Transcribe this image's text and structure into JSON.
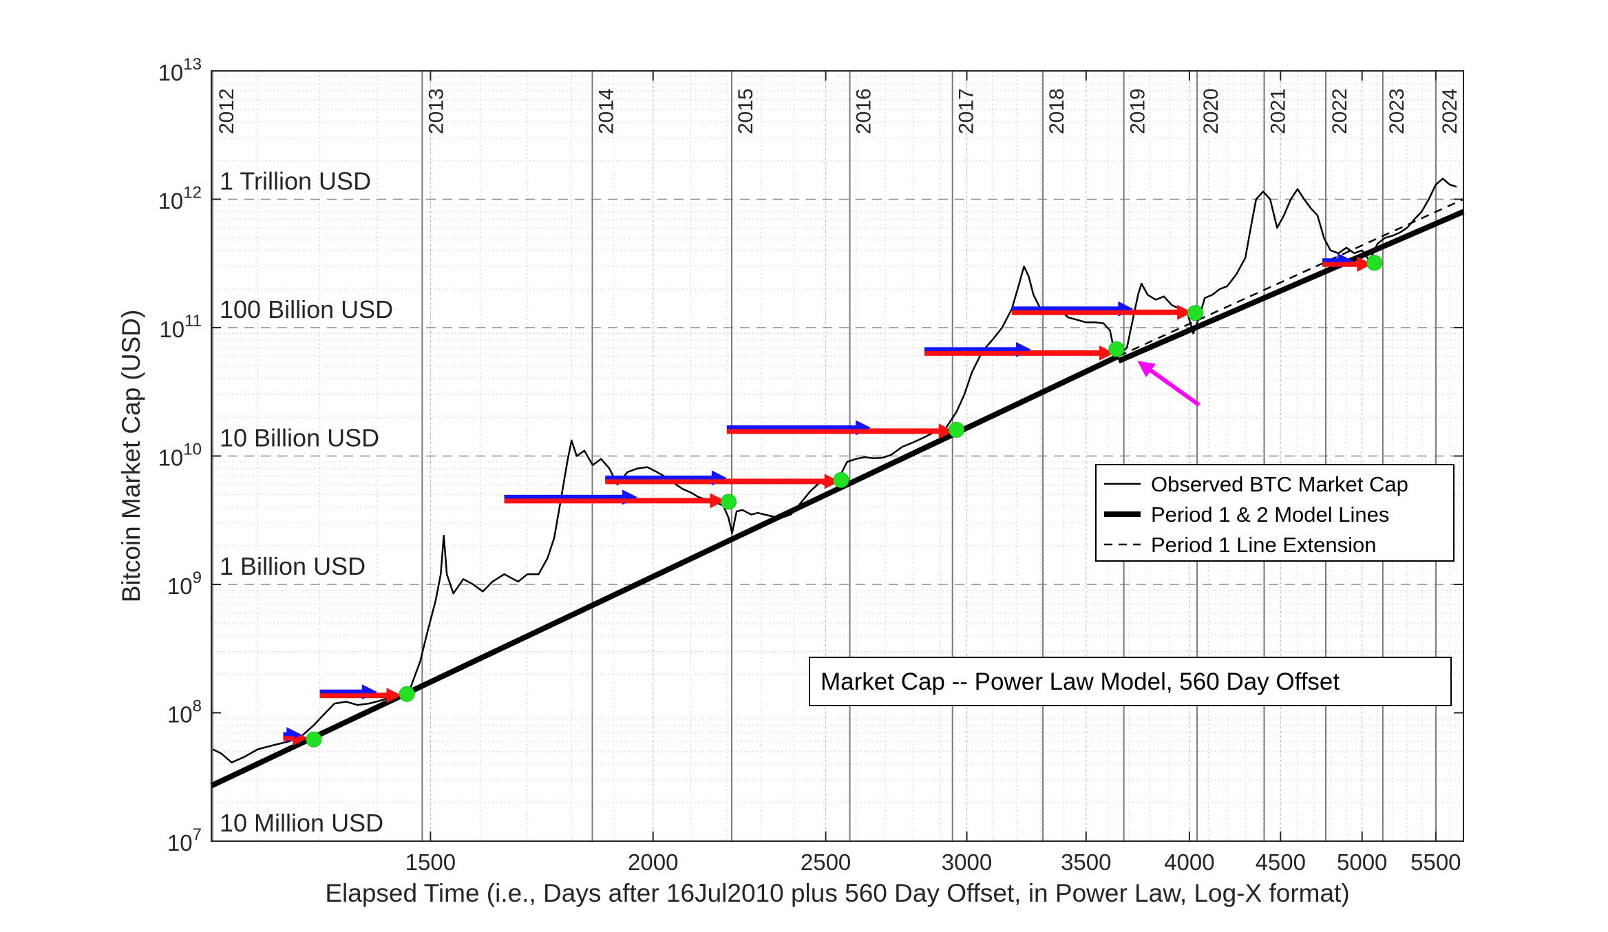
{
  "chart_data": {
    "type": "line",
    "title": "",
    "xlabel": "Elapsed Time (i.e., Days after 16Jul2010 plus 560 Day Offset, in Power Law, Log-X format)",
    "ylabel": "Bitcoin Market Cap (USD)",
    "x_scale": "log",
    "y_scale": "log",
    "xlim": [
      1130,
      5700
    ],
    "ylim": [
      10000000,
      10000000000000
    ],
    "grid": true,
    "x_ticks": [
      {
        "value": 1500,
        "label": "1500"
      },
      {
        "value": 2000,
        "label": "2000"
      },
      {
        "value": 2500,
        "label": "2500"
      },
      {
        "value": 3000,
        "label": "3000"
      },
      {
        "value": 3500,
        "label": "3500"
      },
      {
        "value": 4000,
        "label": "4000"
      },
      {
        "value": 4500,
        "label": "4500"
      },
      {
        "value": 5000,
        "label": "5000"
      },
      {
        "value": 5500,
        "label": "5500"
      }
    ],
    "y_ticks": [
      {
        "value": 10000000,
        "base": "10",
        "exp": "7"
      },
      {
        "value": 100000000,
        "base": "10",
        "exp": "8"
      },
      {
        "value": 1000000000,
        "base": "10",
        "exp": "9"
      },
      {
        "value": 10000000000,
        "base": "10",
        "exp": "10"
      },
      {
        "value": 100000000000,
        "base": "10",
        "exp": "11"
      },
      {
        "value": 1000000000000,
        "base": "10",
        "exp": "12"
      },
      {
        "value": 10000000000000,
        "base": "10",
        "exp": "13"
      }
    ],
    "reference_lines": [
      {
        "value": 10000000,
        "label": "10 Million USD"
      },
      {
        "value": 1000000000,
        "label": "1 Billion USD"
      },
      {
        "value": 10000000000,
        "label": "10 Billion USD"
      },
      {
        "value": 100000000000,
        "label": "100 Billion USD"
      },
      {
        "value": 1000000000000,
        "label": "1 Trillion USD"
      }
    ],
    "year_markers": [
      {
        "day": 1132,
        "label": "2012"
      },
      {
        "day": 1484,
        "label": "2013"
      },
      {
        "day": 1849,
        "label": "2014"
      },
      {
        "day": 2214,
        "label": "2015"
      },
      {
        "day": 2579,
        "label": "2016"
      },
      {
        "day": 2945,
        "label": "2017"
      },
      {
        "day": 3310,
        "label": "2018"
      },
      {
        "day": 3675,
        "label": "2019"
      },
      {
        "day": 4040,
        "label": "2020"
      },
      {
        "day": 4406,
        "label": "2021"
      },
      {
        "day": 4771,
        "label": "2022"
      },
      {
        "day": 5136,
        "label": "2023"
      },
      {
        "day": 5501,
        "label": "2024"
      }
    ],
    "series": [
      {
        "name": "Observed BTC Market Cap",
        "style": "thin-solid",
        "color": "#000000",
        "points": [
          [
            1132,
            52000000
          ],
          [
            1145,
            48000000
          ],
          [
            1160,
            41000000
          ],
          [
            1178,
            45000000
          ],
          [
            1200,
            52000000
          ],
          [
            1225,
            56000000
          ],
          [
            1250,
            60000000
          ],
          [
            1270,
            66000000
          ],
          [
            1290,
            80000000
          ],
          [
            1305,
            95000000
          ],
          [
            1325,
            118000000
          ],
          [
            1345,
            122000000
          ],
          [
            1365,
            115000000
          ],
          [
            1385,
            118000000
          ],
          [
            1405,
            124000000
          ],
          [
            1425,
            132000000
          ],
          [
            1445,
            140000000
          ],
          [
            1460,
            150000000
          ],
          [
            1480,
            250000000
          ],
          [
            1495,
            440000000
          ],
          [
            1510,
            750000000
          ],
          [
            1520,
            1200000000
          ],
          [
            1526,
            2400000000
          ],
          [
            1532,
            1200000000
          ],
          [
            1545,
            850000000
          ],
          [
            1565,
            1100000000
          ],
          [
            1585,
            1000000000
          ],
          [
            1605,
            880000000
          ],
          [
            1625,
            1050000000
          ],
          [
            1650,
            1200000000
          ],
          [
            1680,
            1050000000
          ],
          [
            1700,
            1200000000
          ],
          [
            1725,
            1200000000
          ],
          [
            1745,
            1600000000
          ],
          [
            1760,
            2300000000
          ],
          [
            1775,
            4500000000
          ],
          [
            1790,
            9000000000
          ],
          [
            1800,
            13200000000
          ],
          [
            1812,
            10000000000
          ],
          [
            1830,
            11000000000
          ],
          [
            1850,
            8500000000
          ],
          [
            1870,
            9500000000
          ],
          [
            1890,
            8000000000
          ],
          [
            1910,
            6000000000
          ],
          [
            1935,
            7500000000
          ],
          [
            1960,
            8000000000
          ],
          [
            1985,
            8200000000
          ],
          [
            2010,
            7500000000
          ],
          [
            2035,
            6800000000
          ],
          [
            2060,
            6000000000
          ],
          [
            2080,
            5500000000
          ],
          [
            2100,
            5200000000
          ],
          [
            2120,
            4800000000
          ],
          [
            2140,
            4600000000
          ],
          [
            2165,
            4400000000
          ],
          [
            2190,
            4100000000
          ],
          [
            2205,
            3300000000
          ],
          [
            2215,
            2500000000
          ],
          [
            2228,
            3700000000
          ],
          [
            2245,
            3800000000
          ],
          [
            2270,
            3500000000
          ],
          [
            2290,
            3600000000
          ],
          [
            2310,
            3500000000
          ],
          [
            2330,
            3400000000
          ],
          [
            2360,
            3300000000
          ],
          [
            2390,
            3500000000
          ],
          [
            2420,
            4300000000
          ],
          [
            2450,
            5300000000
          ],
          [
            2480,
            6200000000
          ],
          [
            2510,
            5900000000
          ],
          [
            2540,
            6500000000
          ],
          [
            2570,
            9000000000
          ],
          [
            2600,
            9500000000
          ],
          [
            2630,
            9800000000
          ],
          [
            2660,
            9600000000
          ],
          [
            2690,
            9700000000
          ],
          [
            2720,
            10200000000
          ],
          [
            2760,
            11800000000
          ],
          [
            2800,
            12800000000
          ],
          [
            2840,
            14000000000
          ],
          [
            2880,
            15500000000
          ],
          [
            2920,
            16500000000
          ],
          [
            2960,
            22000000000
          ],
          [
            2990,
            30000000000
          ],
          [
            3020,
            45000000000
          ],
          [
            3060,
            65000000000
          ],
          [
            3100,
            80000000000
          ],
          [
            3140,
            100000000000
          ],
          [
            3180,
            140000000000
          ],
          [
            3210,
            220000000000
          ],
          [
            3230,
            300000000000
          ],
          [
            3250,
            250000000000
          ],
          [
            3270,
            180000000000
          ],
          [
            3300,
            140000000000
          ],
          [
            3340,
            130000000000
          ],
          [
            3380,
            140000000000
          ],
          [
            3420,
            120000000000
          ],
          [
            3460,
            115000000000
          ],
          [
            3500,
            110000000000
          ],
          [
            3540,
            110000000000
          ],
          [
            3580,
            108000000000
          ],
          [
            3610,
            95000000000
          ],
          [
            3630,
            65000000000
          ],
          [
            3660,
            63000000000
          ],
          [
            3690,
            70000000000
          ],
          [
            3720,
            120000000000
          ],
          [
            3745,
            185000000000
          ],
          [
            3760,
            220000000000
          ],
          [
            3790,
            180000000000
          ],
          [
            3830,
            165000000000
          ],
          [
            3870,
            175000000000
          ],
          [
            3910,
            150000000000
          ],
          [
            3950,
            140000000000
          ],
          [
            3990,
            130000000000
          ],
          [
            4020,
            90000000000
          ],
          [
            4050,
            120000000000
          ],
          [
            4080,
            170000000000
          ],
          [
            4120,
            180000000000
          ],
          [
            4160,
            200000000000
          ],
          [
            4200,
            210000000000
          ],
          [
            4250,
            260000000000
          ],
          [
            4300,
            350000000000
          ],
          [
            4330,
            600000000000
          ],
          [
            4360,
            1000000000000
          ],
          [
            4400,
            1150000000000
          ],
          [
            4440,
            1000000000000
          ],
          [
            4480,
            600000000000
          ],
          [
            4520,
            750000000000
          ],
          [
            4560,
            1000000000000
          ],
          [
            4600,
            1200000000000
          ],
          [
            4640,
            1000000000000
          ],
          [
            4680,
            850000000000
          ],
          [
            4720,
            750000000000
          ],
          [
            4760,
            500000000000
          ],
          [
            4800,
            400000000000
          ],
          [
            4850,
            380000000000
          ],
          [
            4900,
            420000000000
          ],
          [
            4950,
            380000000000
          ],
          [
            5000,
            400000000000
          ],
          [
            5050,
            330000000000
          ],
          [
            5100,
            450000000000
          ],
          [
            5150,
            500000000000
          ],
          [
            5200,
            520000000000
          ],
          [
            5250,
            550000000000
          ],
          [
            5300,
            600000000000
          ],
          [
            5350,
            700000000000
          ],
          [
            5400,
            800000000000
          ],
          [
            5450,
            1000000000000
          ],
          [
            5500,
            1300000000000
          ],
          [
            5550,
            1450000000000
          ],
          [
            5600,
            1300000000000
          ],
          [
            5650,
            1250000000000
          ]
        ]
      },
      {
        "name": "Period 1 & 2 Model Lines",
        "style": "thick-solid",
        "color": "#000000",
        "points": [
          [
            1130,
            27000000
          ],
          [
            3650,
            60000000000
          ],
          [
            3650,
            55000000000
          ],
          [
            5700,
            800000000000
          ]
        ]
      },
      {
        "name": "Period 1 Line Extension",
        "style": "dashed",
        "color": "#000000",
        "points": [
          [
            3650,
            60000000000
          ],
          [
            5700,
            1000000000000
          ]
        ]
      }
    ],
    "green_points": [
      [
        1290,
        62000000
      ],
      [
        1455,
        140000000
      ],
      [
        2205,
        4400000000
      ],
      [
        2550,
        6500000000
      ],
      [
        2960,
        16000000000
      ],
      [
        3640,
        68000000000
      ],
      [
        4030,
        130000000000
      ],
      [
        5080,
        320000000000
      ]
    ],
    "arrows": [
      {
        "from_day": 1240,
        "blue_to_day": 1270,
        "red_to_day": 1280,
        "value": 65000000
      },
      {
        "from_day": 1300,
        "blue_to_day": 1400,
        "red_to_day": 1445,
        "value": 140000000
      },
      {
        "from_day": 1650,
        "blue_to_day": 1960,
        "red_to_day": 2195,
        "value": 4600000000
      },
      {
        "from_day": 1880,
        "blue_to_day": 2200,
        "red_to_day": 2545,
        "value": 6500000000
      },
      {
        "from_day": 2200,
        "blue_to_day": 2650,
        "red_to_day": 2950,
        "value": 16000000000
      },
      {
        "from_day": 2840,
        "blue_to_day": 3260,
        "red_to_day": 3630,
        "value": 65000000000
      },
      {
        "from_day": 3180,
        "blue_to_day": 3720,
        "red_to_day": 4015,
        "value": 135000000000
      },
      {
        "from_day": 4750,
        "blue_to_day": 4940,
        "red_to_day": 5065,
        "value": 320000000000
      }
    ],
    "magenta_arrow": {
      "tail_day": 4050,
      "tail_value": 25000000000,
      "head_day": 3740,
      "head_value": 55000000000
    },
    "legend": {
      "placement": "right",
      "entries": [
        {
          "label": "Observed BTC Market Cap",
          "style": "thin-solid"
        },
        {
          "label": "Period 1 & 2 Model Lines",
          "style": "thick-solid"
        },
        {
          "label": "Period 1 Line Extension",
          "style": "dashed"
        }
      ]
    },
    "annotation": "Market Cap -- Power Law Model, 560 Day Offset"
  }
}
